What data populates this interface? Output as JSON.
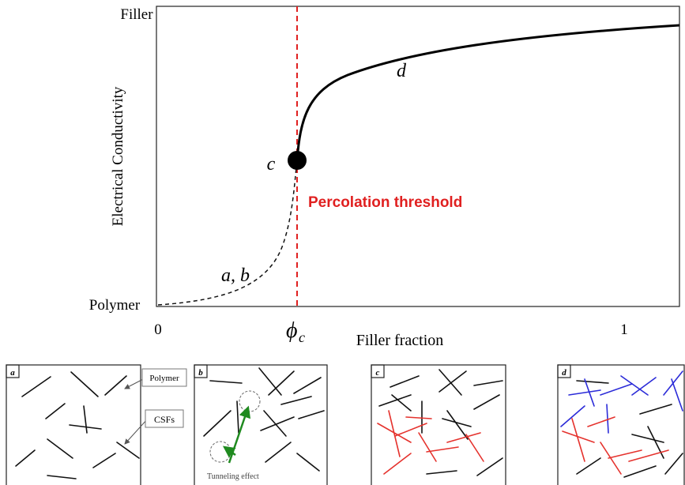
{
  "y_axis": {
    "top_label": "Filler",
    "bottom_label": "Polymer",
    "title": "Electrical Conductivity"
  },
  "x_axis": {
    "start_label": "0",
    "end_label": "1",
    "threshold_symbol": "ϕ",
    "threshold_subscript": "c",
    "title": "Filler fraction"
  },
  "annotations": {
    "threshold": "Percolation threshold",
    "point_c": "c",
    "segment_d": "d",
    "segment_ab": "a, b"
  },
  "panels": [
    {
      "label": "a",
      "callouts": [
        "Polymer",
        "CSFs"
      ]
    },
    {
      "label": "b",
      "caption": "Tunneling effect"
    },
    {
      "label": "c"
    },
    {
      "label": "d"
    }
  ]
}
